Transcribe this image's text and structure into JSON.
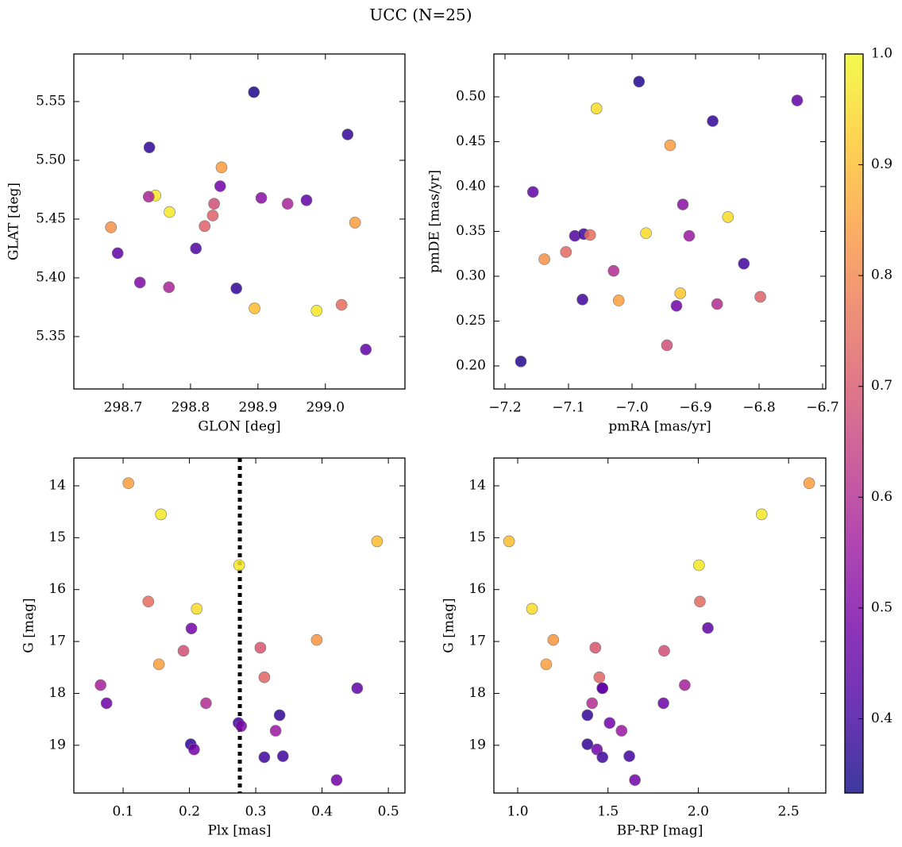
{
  "title": "UCC (N=25)",
  "colorbar": {
    "lim": [
      0.333,
      1.0
    ],
    "ticks": [
      0.4,
      0.5,
      0.6,
      0.7,
      0.8,
      0.9,
      {
        "value": 1.0,
        "label": "1.0"
      }
    ],
    "colormap": [
      "#0d0887",
      "#46039f",
      "#7201a8",
      "#9c179e",
      "#bd3786",
      "#d8576b",
      "#ed7953",
      "#fb9f3a",
      "#fdca26",
      "#f0f921"
    ]
  },
  "chart_data": [
    {
      "type": "scatter",
      "xlabel": "GLON [deg]",
      "ylabel": "GLAT [deg]",
      "x": [
        298.894,
        298.739,
        299.033,
        298.846,
        298.748,
        298.738,
        298.844,
        298.905,
        298.944,
        298.972,
        298.835,
        298.769,
        298.833,
        298.682,
        298.821,
        299.044,
        298.692,
        298.808,
        298.725,
        298.768,
        298.868,
        298.895,
        298.987,
        299.024,
        299.06
      ],
      "y": [
        5.558,
        5.511,
        5.522,
        5.494,
        5.47,
        5.469,
        5.478,
        5.468,
        5.463,
        5.466,
        5.463,
        5.456,
        5.453,
        5.443,
        5.444,
        5.447,
        5.421,
        5.425,
        5.396,
        5.392,
        5.391,
        5.374,
        5.372,
        5.377,
        5.339
      ],
      "c": [
        0.35,
        0.38,
        0.38,
        0.85,
        0.97,
        0.58,
        0.48,
        0.52,
        0.58,
        0.45,
        0.68,
        0.97,
        0.72,
        0.82,
        0.72,
        0.85,
        0.45,
        0.42,
        0.5,
        0.58,
        0.38,
        0.9,
        0.97,
        0.75,
        0.45
      ],
      "xlim": [
        298.627,
        299.118
      ],
      "ylim": [
        5.3054,
        5.5905
      ],
      "xticks": [
        298.7,
        298.8,
        298.9,
        {
          "value": 299.0,
          "label": "299.0"
        }
      ],
      "yticks": [
        5.35,
        {
          "value": 5.4,
          "label": "5.40"
        },
        5.45,
        {
          "value": 5.5,
          "label": "5.50"
        },
        5.55
      ]
    },
    {
      "type": "scatter",
      "xlabel": "pmRA [mas/yr]",
      "ylabel": "pmDE [mas/yr]",
      "x": [
        -6.989,
        -7.056,
        -6.74,
        -6.873,
        -6.94,
        -7.156,
        -6.92,
        -6.849,
        -6.978,
        -7.09,
        -7.076,
        -7.066,
        -6.91,
        -7.138,
        -7.104,
        -6.824,
        -7.029,
        -7.078,
        -7.021,
        -6.924,
        -6.93,
        -6.866,
        -6.798,
        -6.945,
        -7.175
      ],
      "y": [
        0.517,
        0.487,
        0.496,
        0.473,
        0.446,
        0.394,
        0.38,
        0.366,
        0.348,
        0.345,
        0.347,
        0.346,
        0.345,
        0.319,
        0.327,
        0.314,
        0.306,
        0.274,
        0.273,
        0.281,
        0.267,
        0.269,
        0.277,
        0.223,
        0.205
      ],
      "c": [
        0.36,
        0.95,
        0.45,
        0.38,
        0.85,
        0.45,
        0.52,
        0.95,
        0.95,
        0.42,
        0.4,
        0.75,
        0.55,
        0.82,
        0.74,
        0.4,
        0.6,
        0.4,
        0.85,
        0.92,
        0.48,
        0.6,
        0.72,
        0.68,
        0.36
      ],
      "xlim": [
        -7.2175,
        -6.695
      ],
      "ylim": [
        0.1743,
        0.5478
      ],
      "xticks": [
        {
          "value": -7.2,
          "label": "−7.2"
        },
        {
          "value": -7.1,
          "label": "−7.1"
        },
        {
          "value": -7.0,
          "label": "−7.0"
        },
        {
          "value": -6.9,
          "label": "−6.9"
        },
        {
          "value": -6.8,
          "label": "−6.8"
        },
        {
          "value": -6.7,
          "label": "−6.7"
        }
      ],
      "yticks": [
        {
          "value": 0.2,
          "label": "0.20"
        },
        0.25,
        {
          "value": 0.3,
          "label": "0.30"
        },
        0.35,
        {
          "value": 0.4,
          "label": "0.40"
        },
        0.45,
        {
          "value": 0.5,
          "label": "0.50"
        }
      ]
    },
    {
      "type": "scatter",
      "xlabel": "Plx [mas]",
      "ylabel": "G [mag]",
      "x": [
        0.108,
        0.157,
        0.483,
        0.275,
        0.138,
        0.211,
        0.203,
        0.392,
        0.191,
        0.307,
        0.154,
        0.313,
        0.066,
        0.453,
        0.075,
        0.225,
        0.336,
        0.274,
        0.278,
        0.33,
        0.202,
        0.207,
        0.313,
        0.341,
        0.422
      ],
      "y": [
        13.95,
        14.55,
        15.07,
        15.53,
        16.23,
        16.37,
        16.75,
        16.97,
        17.18,
        17.12,
        17.44,
        17.69,
        17.84,
        17.9,
        18.19,
        18.19,
        18.42,
        18.57,
        18.63,
        18.72,
        18.98,
        19.08,
        19.23,
        19.21,
        19.67
      ],
      "c": [
        0.85,
        0.97,
        0.9,
        0.97,
        0.75,
        0.95,
        0.48,
        0.83,
        0.68,
        0.7,
        0.85,
        0.73,
        0.57,
        0.45,
        0.47,
        0.6,
        0.38,
        0.4,
        0.5,
        0.55,
        0.38,
        0.48,
        0.4,
        0.4,
        0.48
      ],
      "xlim": [
        0.0257,
        0.525
      ],
      "ylim": [
        19.92,
        13.465
      ],
      "xticks": [
        0.1,
        0.2,
        0.3,
        0.4,
        0.5
      ],
      "yticks": [
        14,
        15,
        16,
        17,
        18,
        19
      ],
      "vline": 0.276
    },
    {
      "type": "scatter",
      "xlabel": "BP-RP [mag]",
      "ylabel": "G [mag]",
      "x": [
        2.614,
        2.351,
        0.952,
        2.004,
        2.009,
        1.079,
        2.053,
        1.197,
        1.811,
        1.43,
        1.158,
        1.452,
        1.925,
        1.469,
        1.807,
        1.412,
        1.386,
        1.509,
        1.575,
        1.386,
        1.439,
        1.469,
        1.618,
        1.649,
        1.469
      ],
      "y": [
        13.95,
        14.55,
        15.07,
        15.53,
        16.23,
        16.37,
        16.74,
        16.97,
        17.18,
        17.12,
        17.44,
        17.69,
        17.84,
        17.9,
        18.19,
        18.19,
        18.42,
        18.57,
        18.72,
        18.98,
        19.08,
        19.23,
        19.21,
        19.67,
        17.9
      ],
      "c": [
        0.85,
        0.97,
        0.9,
        0.97,
        0.74,
        0.95,
        0.45,
        0.83,
        0.68,
        0.7,
        0.85,
        0.73,
        0.57,
        0.45,
        0.47,
        0.6,
        0.38,
        0.48,
        0.55,
        0.38,
        0.48,
        0.4,
        0.4,
        0.48,
        0.45
      ],
      "xlim": [
        0.868,
        2.706
      ],
      "ylim": [
        19.92,
        13.465
      ],
      "xticks": [
        {
          "value": 1.0,
          "label": "1.0"
        },
        1.5,
        {
          "value": 2.0,
          "label": "2.0"
        },
        2.5
      ],
      "yticks": [
        14,
        15,
        16,
        17,
        18,
        19
      ]
    }
  ]
}
